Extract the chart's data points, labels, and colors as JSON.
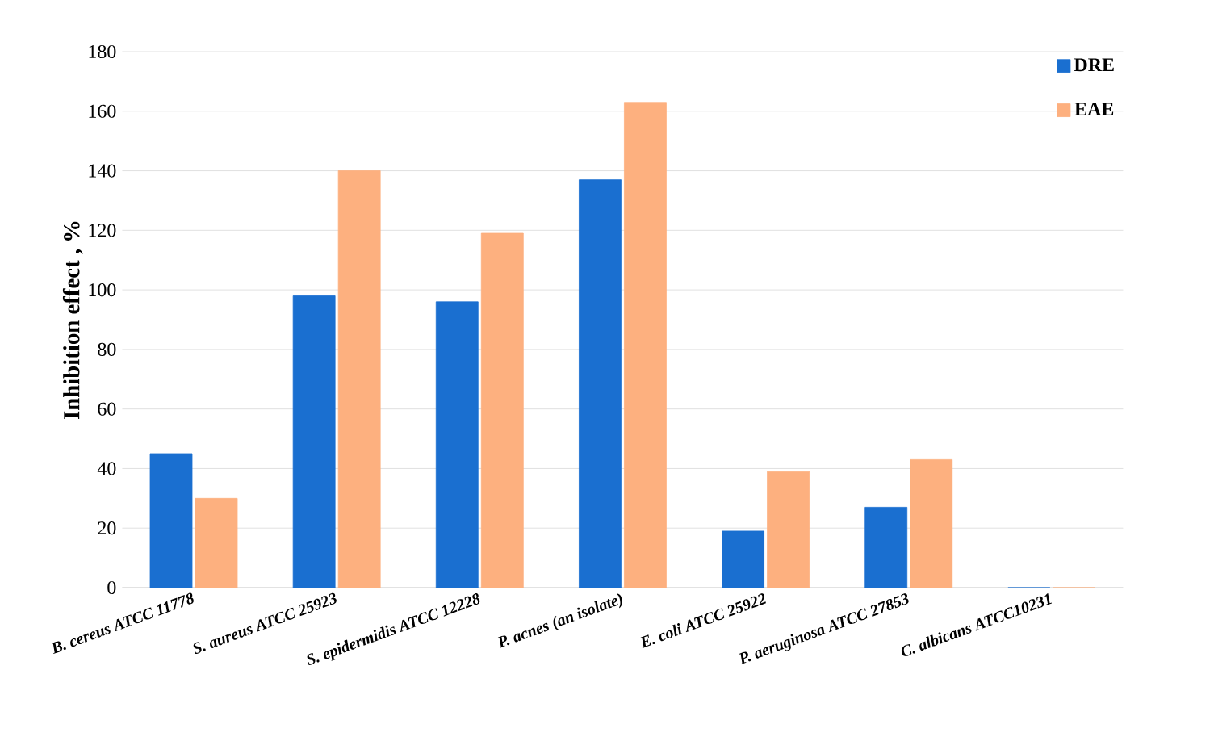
{
  "chart_data": {
    "type": "bar",
    "ylabel": "Inhibition effect , %",
    "categories": [
      "B. cereus ATCC 11778",
      "S. aureus ATCC 25923",
      "S. epidermidis ATCC 12228",
      "P. acnes (an isolate)",
      "E. coli ATCC 25922",
      "P. aeruginosa ATCC 27853",
      "C. albicans ATCC10231"
    ],
    "series": [
      {
        "name": "DRE",
        "color": "#1a6fd0",
        "values": [
          45,
          98,
          96,
          137,
          19,
          27,
          0
        ]
      },
      {
        "name": "EAE",
        "color": "#fdb07f",
        "values": [
          30,
          140,
          119,
          163,
          39,
          43,
          0
        ]
      }
    ],
    "ylim": [
      0,
      180
    ],
    "yticks": [
      0,
      20,
      40,
      60,
      80,
      100,
      120,
      140,
      160,
      180
    ],
    "grid": "y",
    "legend": "top right"
  }
}
